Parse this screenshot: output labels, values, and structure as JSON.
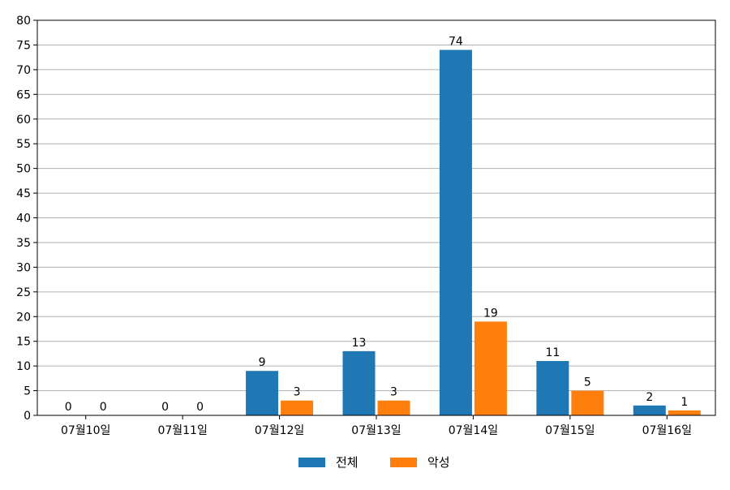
{
  "chart_data": {
    "type": "bar",
    "categories": [
      "07월10일",
      "07월11일",
      "07월12일",
      "07월13일",
      "07월14일",
      "07월15일",
      "07월16일"
    ],
    "series": [
      {
        "name": "전체",
        "values": [
          0,
          0,
          9,
          13,
          74,
          11,
          2
        ],
        "color": "#1f77b4"
      },
      {
        "name": "악성",
        "values": [
          0,
          0,
          3,
          3,
          19,
          5,
          1
        ],
        "color": "#ff7f0e"
      }
    ],
    "title": "",
    "xlabel": "",
    "ylabel": "",
    "ylim": [
      0,
      80
    ],
    "yticks": [
      0,
      5,
      10,
      15,
      20,
      25,
      30,
      35,
      40,
      45,
      50,
      55,
      60,
      65,
      70,
      75,
      80
    ],
    "grid": "horizontal",
    "legend_position": "bottom-center",
    "data_labels": true
  }
}
